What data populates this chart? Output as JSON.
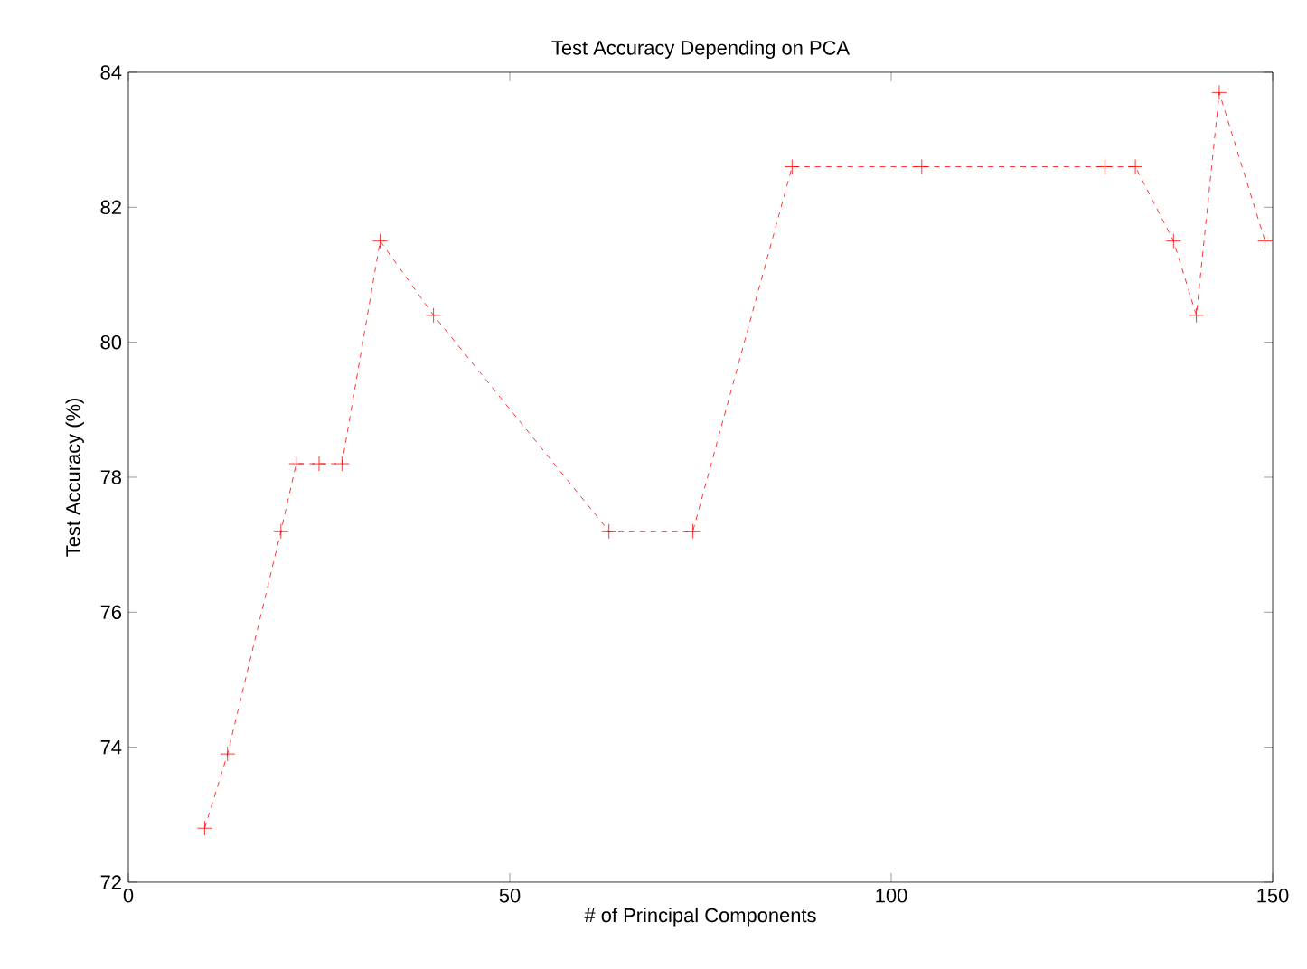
{
  "chart_data": {
    "type": "line",
    "title": "Test Accuracy Depending on PCA",
    "xlabel": "# of Principal Components",
    "ylabel": "Test Accuracy (%)",
    "x": [
      10,
      13,
      20,
      22,
      25,
      28,
      33,
      40,
      63,
      74,
      87,
      104,
      128,
      132,
      137,
      140,
      143,
      149
    ],
    "series": [
      {
        "color": "#ff0000",
        "values": [
          72.8,
          73.9,
          77.2,
          78.2,
          78.2,
          78.2,
          81.5,
          80.4,
          77.2,
          77.2,
          82.6,
          82.6,
          82.6,
          82.6,
          81.5,
          80.4,
          83.7,
          81.5
        ]
      }
    ],
    "xlim": [
      0,
      150
    ],
    "ylim": [
      72,
      84
    ],
    "xticks": [
      0,
      50,
      100,
      150
    ],
    "yticks": [
      72,
      74,
      76,
      78,
      80,
      82,
      84
    ],
    "marker": "cross",
    "line_style": "dashed"
  }
}
